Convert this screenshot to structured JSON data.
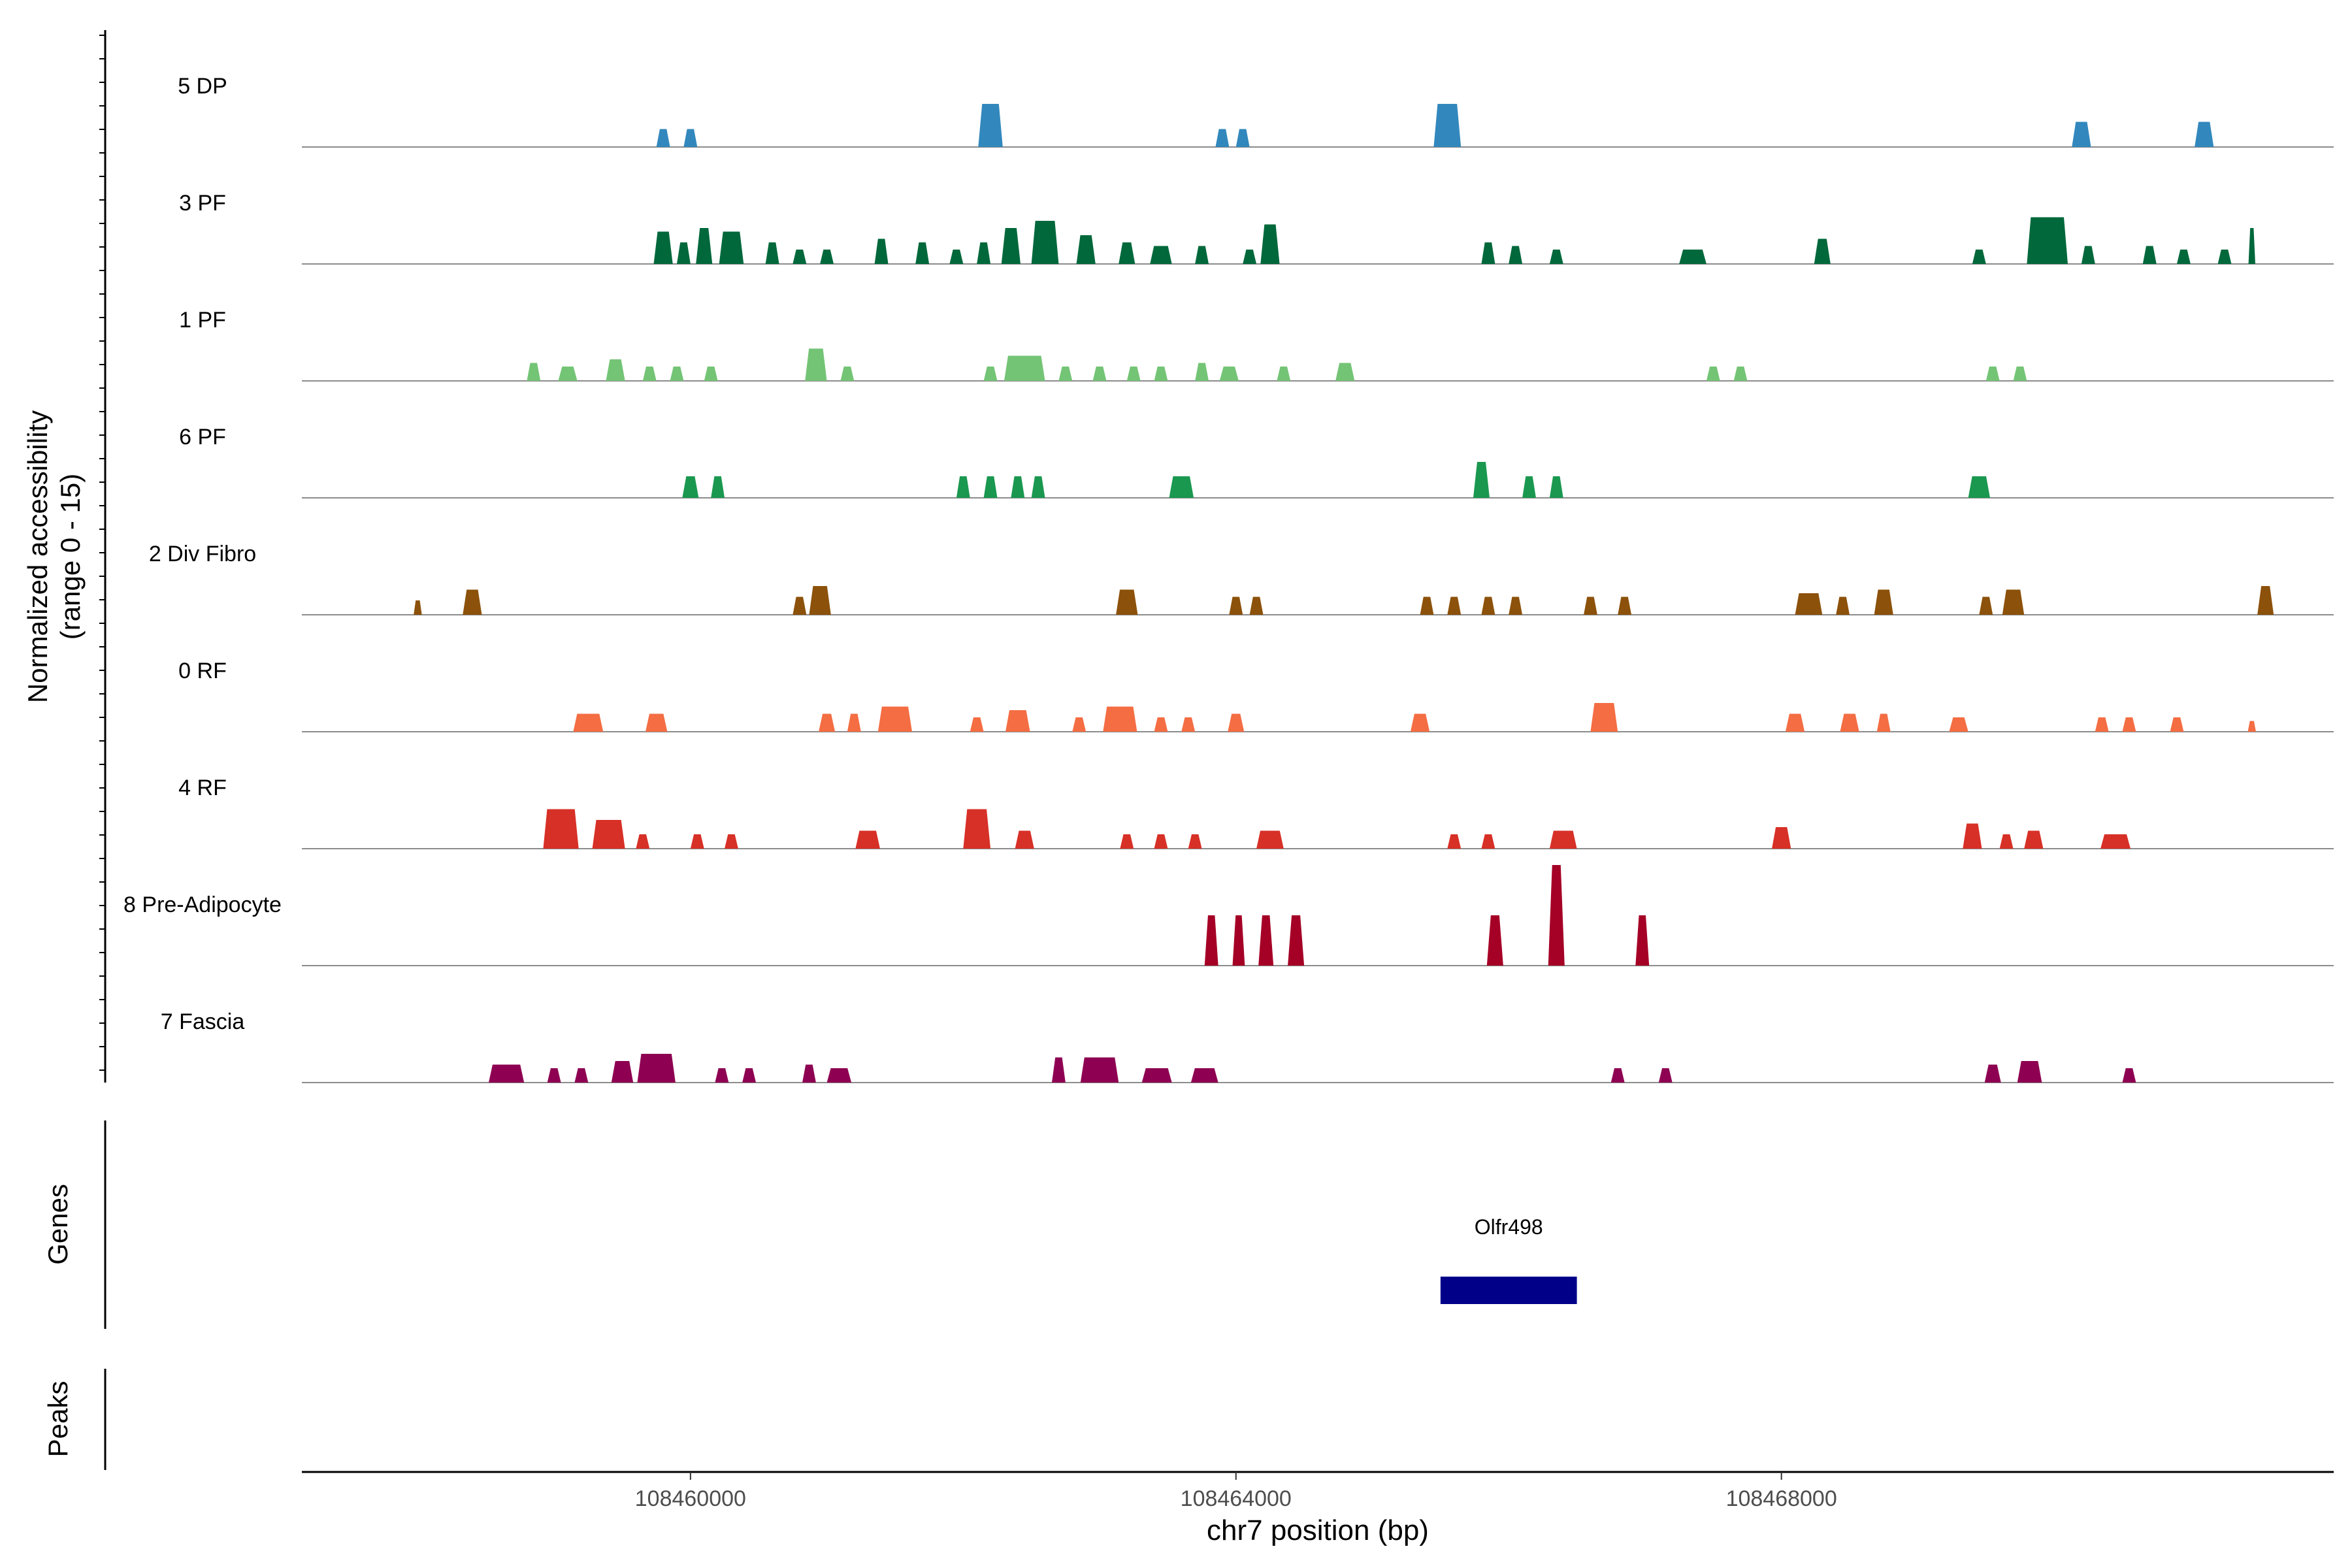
{
  "chart_data": {
    "type": "area",
    "title": "",
    "xlabel": "chr7 position (bp)",
    "ylabel_line1": "Normalized accessibility",
    "ylabel_line2": "(range 0 - 15)",
    "ylim": [
      0,
      15
    ],
    "xlim": [
      108457150,
      108472050
    ],
    "x_ticks": [
      {
        "value": 108460000,
        "label": "108460000"
      },
      {
        "value": 108464000,
        "label": "108464000"
      },
      {
        "value": 108468000,
        "label": "108468000"
      }
    ],
    "genes_label": "Genes",
    "peaks_label": "Peaks",
    "genes": [
      {
        "name": "Olfr498",
        "start": 108465500,
        "end": 108466500,
        "color": "#000089"
      }
    ],
    "tracks": [
      {
        "name": "5 DP",
        "color": "#3288bd",
        "peaks": [
          [
            108459800,
            100,
            2.5
          ],
          [
            108460000,
            100,
            2.5
          ],
          [
            108462200,
            180,
            6
          ],
          [
            108463900,
            100,
            2.5
          ],
          [
            108464050,
            100,
            2.5
          ],
          [
            108465550,
            200,
            6
          ],
          [
            108470200,
            140,
            3.5
          ],
          [
            108471100,
            140,
            3.5
          ]
        ]
      },
      {
        "name": "3 PF",
        "color": "#00683b",
        "peaks": [
          [
            108459800,
            140,
            4.5
          ],
          [
            108459950,
            100,
            3
          ],
          [
            108460100,
            120,
            5
          ],
          [
            108460300,
            180,
            4.5
          ],
          [
            108460600,
            100,
            3
          ],
          [
            108460800,
            100,
            2
          ],
          [
            108461000,
            100,
            2
          ],
          [
            108461400,
            100,
            3.5
          ],
          [
            108461700,
            100,
            3
          ],
          [
            108461950,
            100,
            2
          ],
          [
            108462150,
            100,
            3
          ],
          [
            108462350,
            140,
            5
          ],
          [
            108462600,
            200,
            6
          ],
          [
            108462900,
            140,
            4
          ],
          [
            108463200,
            120,
            3
          ],
          [
            108463450,
            160,
            2.5
          ],
          [
            108463750,
            100,
            2.5
          ],
          [
            108464100,
            100,
            2
          ],
          [
            108464250,
            140,
            5.5
          ],
          [
            108465850,
            100,
            3
          ],
          [
            108466050,
            100,
            2.5
          ],
          [
            108466350,
            100,
            2
          ],
          [
            108467350,
            200,
            2
          ],
          [
            108468300,
            120,
            3.5
          ],
          [
            108469450,
            100,
            2
          ],
          [
            108469950,
            300,
            6.5
          ],
          [
            108470250,
            100,
            2.5
          ],
          [
            108470700,
            100,
            2.5
          ],
          [
            108470950,
            100,
            2
          ],
          [
            108471250,
            100,
            2
          ],
          [
            108471450,
            50,
            5
          ]
        ]
      },
      {
        "name": "1 PF",
        "color": "#74c476",
        "peaks": [
          [
            108458850,
            100,
            2.5
          ],
          [
            108459100,
            140,
            2
          ],
          [
            108459450,
            140,
            3
          ],
          [
            108459700,
            100,
            2
          ],
          [
            108459900,
            100,
            2
          ],
          [
            108460150,
            100,
            2
          ],
          [
            108460920,
            160,
            4.5
          ],
          [
            108461150,
            100,
            2
          ],
          [
            108462200,
            100,
            2
          ],
          [
            108462450,
            300,
            3.5
          ],
          [
            108462750,
            100,
            2
          ],
          [
            108463000,
            100,
            2
          ],
          [
            108463250,
            100,
            2
          ],
          [
            108463450,
            100,
            2
          ],
          [
            108463750,
            100,
            2.5
          ],
          [
            108463950,
            140,
            2
          ],
          [
            108464350,
            100,
            2
          ],
          [
            108464800,
            140,
            2.5
          ],
          [
            108467500,
            100,
            2
          ],
          [
            108467700,
            100,
            2
          ],
          [
            108469550,
            100,
            2
          ],
          [
            108469750,
            100,
            2
          ]
        ]
      },
      {
        "name": "6 PF",
        "color": "#1a9850",
        "peaks": [
          [
            108460000,
            120,
            3
          ],
          [
            108460200,
            100,
            3
          ],
          [
            108462000,
            100,
            3
          ],
          [
            108462200,
            100,
            3
          ],
          [
            108462400,
            100,
            3
          ],
          [
            108462550,
            100,
            3
          ],
          [
            108463600,
            180,
            3
          ],
          [
            108465800,
            120,
            5
          ],
          [
            108466150,
            100,
            3
          ],
          [
            108466350,
            100,
            3
          ],
          [
            108469450,
            160,
            3
          ]
        ]
      },
      {
        "name": "2 Div Fibro",
        "color": "#8c510a",
        "peaks": [
          [
            108458000,
            60,
            2
          ],
          [
            108458400,
            140,
            3.5
          ],
          [
            108460800,
            100,
            2.5
          ],
          [
            108460950,
            160,
            4
          ],
          [
            108463200,
            160,
            3.5
          ],
          [
            108464000,
            100,
            2.5
          ],
          [
            108464150,
            100,
            2.5
          ],
          [
            108465400,
            100,
            2.5
          ],
          [
            108465600,
            100,
            2.5
          ],
          [
            108465850,
            100,
            2.5
          ],
          [
            108466050,
            100,
            2.5
          ],
          [
            108466600,
            100,
            2.5
          ],
          [
            108466850,
            100,
            2.5
          ],
          [
            108468200,
            200,
            3
          ],
          [
            108468450,
            100,
            2.5
          ],
          [
            108468750,
            140,
            3.5
          ],
          [
            108469500,
            100,
            2.5
          ],
          [
            108469700,
            160,
            3.5
          ],
          [
            108471550,
            120,
            4
          ]
        ]
      },
      {
        "name": "0 RF",
        "color": "#f46d43",
        "peaks": [
          [
            108459250,
            220,
            2.5
          ],
          [
            108459750,
            160,
            2.5
          ],
          [
            108461000,
            120,
            2.5
          ],
          [
            108461200,
            100,
            2.5
          ],
          [
            108461500,
            250,
            3.5
          ],
          [
            108462100,
            100,
            2
          ],
          [
            108462400,
            180,
            3
          ],
          [
            108462850,
            100,
            2
          ],
          [
            108463150,
            250,
            3.5
          ],
          [
            108463450,
            100,
            2
          ],
          [
            108463650,
            100,
            2
          ],
          [
            108464000,
            120,
            2.5
          ],
          [
            108465350,
            140,
            2.5
          ],
          [
            108466700,
            200,
            4
          ],
          [
            108468100,
            140,
            2.5
          ],
          [
            108468500,
            140,
            2.5
          ],
          [
            108468750,
            100,
            2.5
          ],
          [
            108469300,
            140,
            2
          ],
          [
            108470350,
            100,
            2
          ],
          [
            108470550,
            100,
            2
          ],
          [
            108470900,
            100,
            2
          ],
          [
            108471450,
            60,
            1.5
          ]
        ]
      },
      {
        "name": "4 RF",
        "color": "#d73027",
        "peaks": [
          [
            108459050,
            260,
            5.5
          ],
          [
            108459400,
            240,
            4
          ],
          [
            108459650,
            100,
            2
          ],
          [
            108460050,
            100,
            2
          ],
          [
            108460300,
            100,
            2
          ],
          [
            108461300,
            180,
            2.5
          ],
          [
            108462100,
            200,
            5.5
          ],
          [
            108462450,
            140,
            2.5
          ],
          [
            108463200,
            100,
            2
          ],
          [
            108463450,
            100,
            2
          ],
          [
            108463700,
            100,
            2
          ],
          [
            108464250,
            200,
            2.5
          ],
          [
            108465600,
            100,
            2
          ],
          [
            108465850,
            100,
            2
          ],
          [
            108466400,
            200,
            2.5
          ],
          [
            108468000,
            140,
            3
          ],
          [
            108469400,
            140,
            3.5
          ],
          [
            108469650,
            100,
            2
          ],
          [
            108469850,
            140,
            2.5
          ],
          [
            108470450,
            220,
            2
          ]
        ]
      },
      {
        "name": "8 Pre-Adipocyte",
        "color": "#a50026",
        "peaks": [
          [
            108463820,
            100,
            7
          ],
          [
            108464020,
            90,
            7
          ],
          [
            108464220,
            110,
            7
          ],
          [
            108464440,
            120,
            7
          ],
          [
            108465900,
            120,
            7
          ],
          [
            108466350,
            120,
            14
          ],
          [
            108466980,
            100,
            7
          ]
        ]
      },
      {
        "name": "7 Fascia",
        "color": "#8e0152",
        "peaks": [
          [
            108458650,
            260,
            2.5
          ],
          [
            108459000,
            100,
            2
          ],
          [
            108459200,
            100,
            2
          ],
          [
            108459500,
            160,
            3
          ],
          [
            108459750,
            280,
            4
          ],
          [
            108460230,
            100,
            2
          ],
          [
            108460430,
            100,
            2
          ],
          [
            108460870,
            100,
            2.5
          ],
          [
            108461090,
            180,
            2
          ],
          [
            108462700,
            100,
            3.5
          ],
          [
            108463000,
            280,
            3.5
          ],
          [
            108463420,
            220,
            2
          ],
          [
            108463770,
            200,
            2
          ],
          [
            108466800,
            100,
            2
          ],
          [
            108467150,
            100,
            2
          ],
          [
            108469550,
            120,
            2.5
          ],
          [
            108469820,
            180,
            3
          ],
          [
            108470550,
            100,
            2
          ]
        ]
      }
    ]
  }
}
